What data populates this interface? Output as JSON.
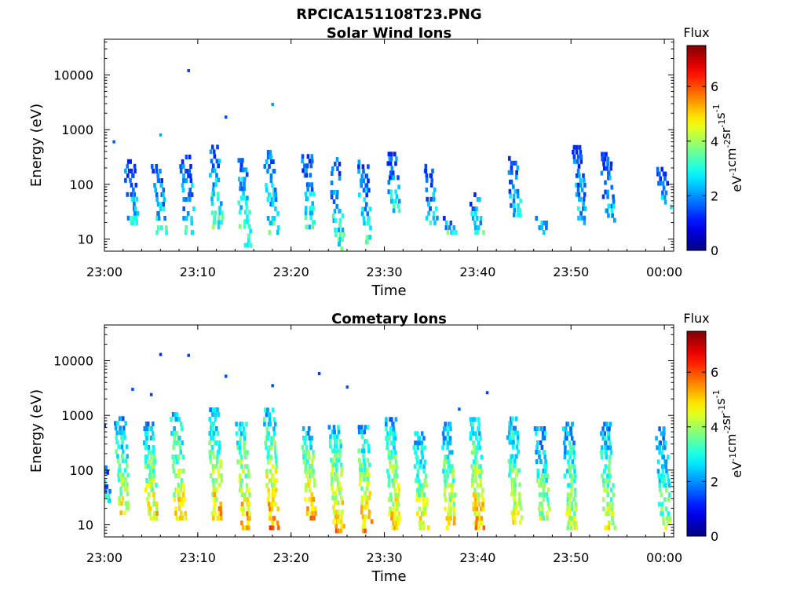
{
  "figure": {
    "title": "RPCICA151108T23.PNG"
  },
  "chart_data": [
    {
      "type": "heatmap",
      "title": "Solar Wind Ions",
      "xlabel": "Time",
      "ylabel": "Energy (eV)",
      "x_ticks": [
        "23:00",
        "23:10",
        "23:20",
        "23:30",
        "23:40",
        "23:50",
        "00:00"
      ],
      "y_ticks": [
        "10",
        "100",
        "1000",
        "10000"
      ],
      "y_scale": "log",
      "xlim": [
        "23:00",
        "00:01"
      ],
      "ylim": [
        6,
        45000
      ],
      "colorbar": {
        "label_top": "Flux",
        "label": "eV-1cm-2sr-1s-1",
        "ticks": [
          "0",
          "2",
          "4",
          "6"
        ],
        "range": [
          0,
          7.5
        ],
        "colormap": "jet"
      },
      "bursts": [
        {
          "t": "23:03",
          "emin": 18,
          "emax": 280,
          "flux": 2.7
        },
        {
          "t": "23:06",
          "emin": 12,
          "emax": 200,
          "flux": 2.9
        },
        {
          "t": "23:09",
          "emin": 12,
          "emax": 330,
          "flux": 2.8
        },
        {
          "t": "23:12",
          "emin": 15,
          "emax": 480,
          "flux": 3.3
        },
        {
          "t": "23:15",
          "emin": 7,
          "emax": 260,
          "flux": 3.5
        },
        {
          "t": "23:18",
          "emin": 12,
          "emax": 420,
          "flux": 3.1
        },
        {
          "t": "23:22",
          "emin": 15,
          "emax": 320,
          "flux": 3.0
        },
        {
          "t": "23:25",
          "emin": 6,
          "emax": 300,
          "flux": 3.2
        },
        {
          "t": "23:28",
          "emin": 8,
          "emax": 280,
          "flux": 3.0
        },
        {
          "t": "23:31",
          "emin": 30,
          "emax": 420,
          "flux": 2.8
        },
        {
          "t": "23:35",
          "emin": 18,
          "emax": 230,
          "flux": 2.6
        },
        {
          "t": "23:37",
          "emin": 12,
          "emax": 22,
          "flux": 3.1
        },
        {
          "t": "23:40",
          "emin": 12,
          "emax": 65,
          "flux": 3.0
        },
        {
          "t": "23:44",
          "emin": 25,
          "emax": 300,
          "flux": 2.6
        },
        {
          "t": "23:47",
          "emin": 12,
          "emax": 25,
          "flux": 2.8
        },
        {
          "t": "23:51",
          "emin": 18,
          "emax": 430,
          "flux": 2.5
        },
        {
          "t": "23:54",
          "emin": 20,
          "emax": 330,
          "flux": 2.5
        },
        {
          "t": "00:00",
          "emin": 35,
          "emax": 180,
          "flux": 2.6
        }
      ],
      "sparse_points": [
        {
          "t": "23:01",
          "e": 600,
          "flux": 1.6
        },
        {
          "t": "23:06",
          "e": 800,
          "flux": 2.2
        },
        {
          "t": "23:09",
          "e": 12000,
          "flux": 1.4
        },
        {
          "t": "23:13",
          "e": 1700,
          "flux": 1.5
        },
        {
          "t": "23:18",
          "e": 2900,
          "flux": 2.1
        }
      ]
    },
    {
      "type": "heatmap",
      "title": "Cometary Ions",
      "xlabel": "Time",
      "ylabel": "Energy (eV)",
      "x_ticks": [
        "23:00",
        "23:10",
        "23:20",
        "23:30",
        "23:40",
        "23:50",
        "00:00"
      ],
      "y_ticks": [
        "10",
        "100",
        "1000",
        "10000"
      ],
      "y_scale": "log",
      "xlim": [
        "23:00",
        "00:01"
      ],
      "ylim": [
        6,
        45000
      ],
      "colorbar": {
        "label_top": "Flux",
        "label": "eV-1cm-2sr-1s-1",
        "ticks": [
          "0",
          "2",
          "4",
          "6"
        ],
        "range": [
          0,
          7.5
        ],
        "colormap": "jet"
      },
      "bursts": [
        {
          "t": "23:00",
          "emin": 25,
          "emax": 120,
          "flux": 2.8
        },
        {
          "t": "23:02",
          "emin": 15,
          "emax": 900,
          "flux": 4.6
        },
        {
          "t": "23:05",
          "emin": 12,
          "emax": 700,
          "flux": 4.9
        },
        {
          "t": "23:08",
          "emin": 12,
          "emax": 1000,
          "flux": 5.0
        },
        {
          "t": "23:12",
          "emin": 12,
          "emax": 1200,
          "flux": 5.2
        },
        {
          "t": "23:15",
          "emin": 8,
          "emax": 700,
          "flux": 5.5
        },
        {
          "t": "23:18",
          "emin": 8,
          "emax": 1200,
          "flux": 5.6
        },
        {
          "t": "23:22",
          "emin": 12,
          "emax": 600,
          "flux": 5.3
        },
        {
          "t": "23:25",
          "emin": 7,
          "emax": 600,
          "flux": 5.4
        },
        {
          "t": "23:28",
          "emin": 7,
          "emax": 600,
          "flux": 5.2
        },
        {
          "t": "23:31",
          "emin": 8,
          "emax": 800,
          "flux": 5.1
        },
        {
          "t": "23:34",
          "emin": 8,
          "emax": 500,
          "flux": 4.7
        },
        {
          "t": "23:37",
          "emin": 8,
          "emax": 700,
          "flux": 4.8
        },
        {
          "t": "23:40",
          "emin": 8,
          "emax": 900,
          "flux": 5.3
        },
        {
          "t": "23:44",
          "emin": 10,
          "emax": 800,
          "flux": 4.8
        },
        {
          "t": "23:47",
          "emin": 12,
          "emax": 600,
          "flux": 4.1
        },
        {
          "t": "23:50",
          "emin": 8,
          "emax": 700,
          "flux": 4.4
        },
        {
          "t": "23:54",
          "emin": 8,
          "emax": 700,
          "flux": 4.5
        },
        {
          "t": "00:00",
          "emin": 8,
          "emax": 600,
          "flux": 4.0
        }
      ],
      "sparse_points": [
        {
          "t": "23:00",
          "e": 650,
          "flux": 1.4
        },
        {
          "t": "23:03",
          "e": 3000,
          "flux": 1.5
        },
        {
          "t": "23:05",
          "e": 2400,
          "flux": 1.4
        },
        {
          "t": "23:06",
          "e": 13000,
          "flux": 1.3
        },
        {
          "t": "23:09",
          "e": 12500,
          "flux": 1.4
        },
        {
          "t": "23:13",
          "e": 5200,
          "flux": 1.5
        },
        {
          "t": "23:18",
          "e": 3500,
          "flux": 1.5
        },
        {
          "t": "23:23",
          "e": 5800,
          "flux": 1.4
        },
        {
          "t": "23:26",
          "e": 3300,
          "flux": 1.6
        },
        {
          "t": "23:41",
          "e": 2600,
          "flux": 1.4
        },
        {
          "t": "23:38",
          "e": 1300,
          "flux": 1.6
        }
      ]
    }
  ]
}
